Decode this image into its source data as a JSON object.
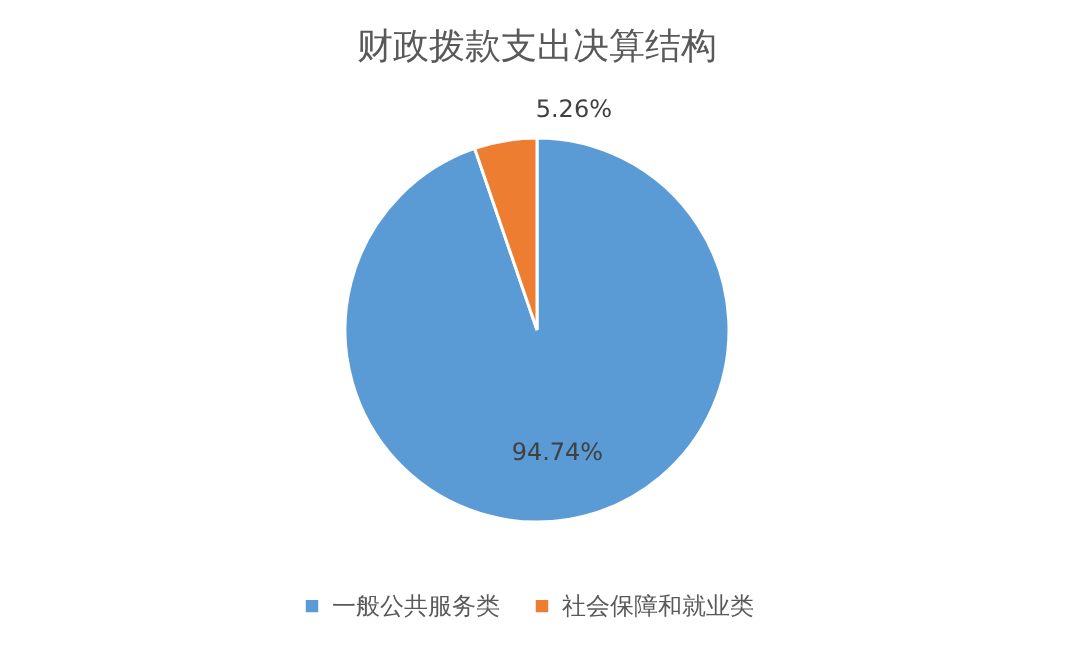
{
  "chart_data": {
    "type": "pie",
    "title": "财政拨款支出决算结构",
    "categories": [
      "一般公共服务类",
      "社会保障和就业类"
    ],
    "values": [
      94.74,
      5.26
    ],
    "colors": [
      "#5b9bd5",
      "#ed7d31"
    ],
    "value_labels": [
      "94.74%",
      "5.26%"
    ],
    "legend": "bottom"
  }
}
